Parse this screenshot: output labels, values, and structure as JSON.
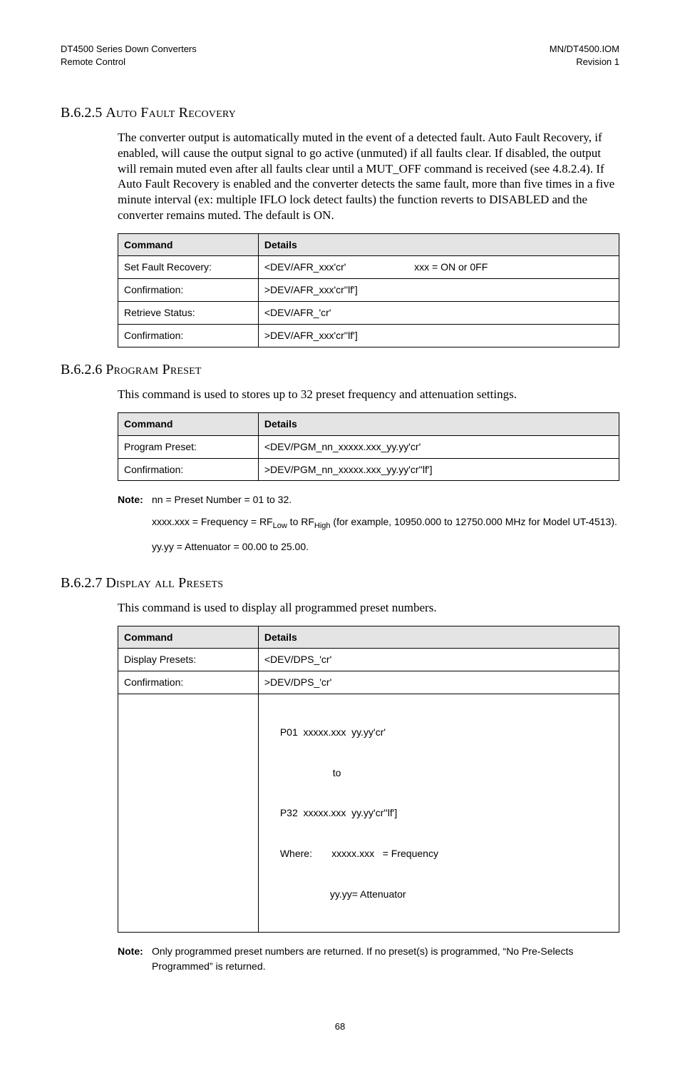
{
  "header": {
    "left_line1": "DT4500 Series Down Converters",
    "left_line2": "Remote Control",
    "right_line1": "MN/DT4500.IOM",
    "right_line2": "Revision 1"
  },
  "sections": {
    "afr": {
      "num": "B.6.2.5",
      "title": "Auto Fault Recovery",
      "para": "The converter output is automatically muted in the event of a detected fault.  Auto Fault Recovery, if enabled, will cause the output signal to go active (unmuted) if all faults clear.  If disabled, the output will remain muted even after all faults clear until a MUT_OFF command is received (see 4.8.2.4). If Auto Fault Recovery is enabled and the converter detects the same fault, more than five times in a five minute interval (ex: multiple IFLO lock detect faults) the function reverts to DISABLED and the converter remains muted.  The default is ON.",
      "th_command": "Command",
      "th_details": "Details",
      "rows": [
        {
          "cmd": "Set Fault Recovery:",
          "det_left": "<DEV/AFR_xxx'cr'",
          "det_right": "xxx = ON or 0FF"
        },
        {
          "cmd": "Confirmation:",
          "det": ">DEV/AFR_xxx'cr''lf']"
        },
        {
          "cmd": "Retrieve Status:",
          "det": "<DEV/AFR_'cr'"
        },
        {
          "cmd": "Confirmation:",
          "det": ">DEV/AFR_xxx'cr''lf']"
        }
      ]
    },
    "pgm": {
      "num": "B.6.2.6",
      "title": "Program Preset",
      "para": "This command is used to stores up to 32 preset frequency and attenuation settings.",
      "th_command": "Command",
      "th_details": "Details",
      "rows": [
        {
          "cmd": "Program Preset:",
          "det": "<DEV/PGM_nn_xxxxx.xxx_yy.yy'cr'"
        },
        {
          "cmd": "Confirmation:",
          "det": ">DEV/PGM_nn_xxxxx.xxx_yy.yy'cr''lf']"
        }
      ],
      "note_label": "Note:",
      "note_line1": "nn = Preset Number = 01 to 32.",
      "note_line2_pre": "xxxx.xxx = Frequency = RF",
      "note_line2_sub1": "Low",
      "note_line2_mid": " to RF",
      "note_line2_sub2": "High",
      "note_line2_post": " (for example, 10950.000 to 12750.000 MHz for Model UT-4513).",
      "note_line3": "yy.yy = Attenuator = 00.00 to 25.00."
    },
    "dps": {
      "num": "B.6.2.7",
      "title": "Display all Presets",
      "para": "This command is used to display all programmed preset numbers.",
      "th_command": "Command",
      "th_details": "Details",
      "rows": [
        {
          "cmd": "Display Presets:",
          "det": "<DEV/DPS_'cr'"
        },
        {
          "cmd": "Confirmation:",
          "det": ">DEV/DPS_'cr'"
        }
      ],
      "multirow": {
        "l1": "P01  xxxxx.xxx  yy.yy'cr'",
        "l2": "                   to",
        "l3": "P32  xxxxx.xxx  yy.yy'cr''lf']",
        "l4": "Where:       xxxxx.xxx   = Frequency",
        "l5": "                  yy.yy= Attenuator"
      },
      "note_label": "Note:",
      "note_body": "Only programmed preset numbers are returned. If no preset(s) is programmed, “No Pre-Selects Programmed” is returned."
    }
  },
  "page_number": "68"
}
